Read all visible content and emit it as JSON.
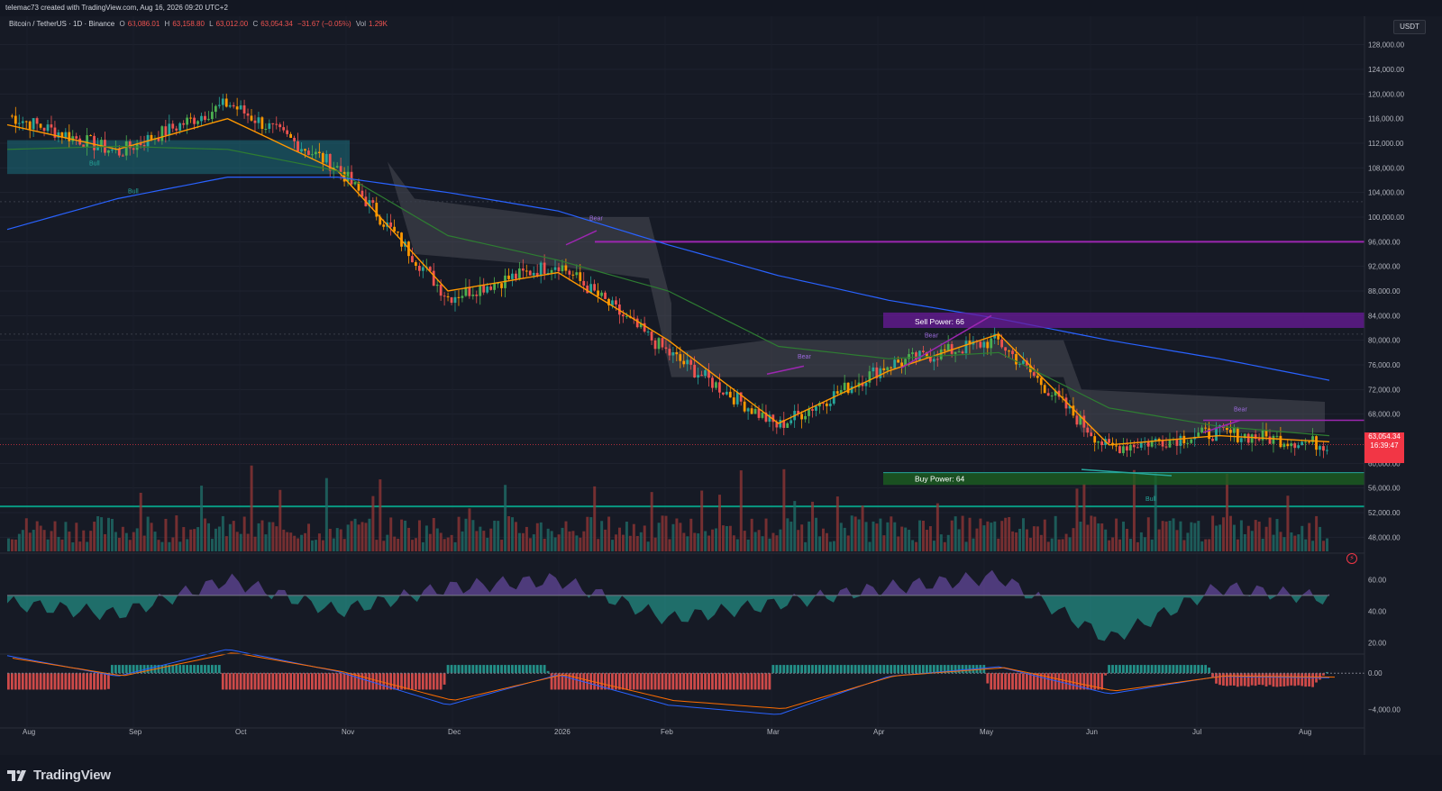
{
  "header": {
    "credit": "telemac73 created with TradingView.com, Aug 16, 2026 09:20 UTC+2",
    "symbol": "Bitcoin / TetherUS · 1D · Binance",
    "ohlc": {
      "o_label": "O",
      "o": "63,086.01",
      "h_label": "H",
      "h": "63,158.80",
      "l_label": "L",
      "l": "63,012.00",
      "c_label": "C",
      "c": "63,054.34",
      "change": "−31.67 (−0.05%)",
      "vol_label": "Vol",
      "vol": "1.29K"
    },
    "currency_button": "USDT"
  },
  "price_scale": {
    "labels": [
      "128,000.00",
      "124,000.00",
      "120,000.00",
      "116,000.00",
      "112,000.00",
      "108,000.00",
      "104,000.00",
      "100,000.00",
      "96,000.00",
      "92,000.00",
      "88,000.00",
      "84,000.00",
      "80,000.00",
      "76,000.00",
      "72,000.00",
      "68,000.00",
      "64,000.00",
      "60,000.00",
      "56,000.00",
      "52,000.00",
      "48,000.00"
    ],
    "last_price": "63,054.34",
    "countdown": "16:39:47"
  },
  "rsi_scale": {
    "labels": [
      "60.00",
      "40.00",
      "20.00"
    ]
  },
  "macd_scale": {
    "labels": [
      "0.00",
      "−4,000.00"
    ]
  },
  "time_axis": [
    "Aug",
    "Sep",
    "Oct",
    "Nov",
    "Dec",
    "2026",
    "Feb",
    "Mar",
    "Apr",
    "May",
    "Jun",
    "Jul",
    "Aug"
  ],
  "annotations": {
    "sell_power": "Sell Power: 66",
    "buy_power": "Buy Power: 64",
    "bull": "Bull",
    "bear": "Bear"
  },
  "colors": {
    "up": "#26a69a",
    "down": "#ef5350",
    "ema_fast": "#ff9800",
    "sma_green": "#2e7d32",
    "sma_blue": "#2962ff",
    "purple": "#9c27b0",
    "cloud": "#4a4c55",
    "teal_cloud": "#1b6f7d",
    "bg": "#161a25",
    "price_tag": "#f23645"
  },
  "icons": {
    "logo": "tradingview-logo-icon",
    "alert": "lightning-icon"
  },
  "footer": {
    "brand": "TradingView"
  },
  "chart_data": {
    "type": "candlestick",
    "title": "Bitcoin / TetherUS · 1D · Binance",
    "x": [
      "Aug",
      "Sep",
      "Oct",
      "Nov",
      "Dec",
      "2026",
      "Feb",
      "Mar",
      "Apr",
      "May",
      "Jun",
      "Jul",
      "Aug"
    ],
    "close": [
      116500,
      110500,
      118500,
      108000,
      87000,
      92500,
      78000,
      66000,
      76000,
      80000,
      62500,
      65000,
      63054
    ],
    "ylim": [
      46000,
      130000
    ],
    "series": [
      {
        "name": "EMA",
        "values": [
          115000,
          111000,
          116000,
          107500,
          88000,
          91000,
          80000,
          66500,
          75000,
          81000,
          63000,
          64500,
          63500
        ]
      },
      {
        "name": "SMA",
        "values": [
          111000,
          111500,
          111000,
          107500,
          97000,
          93000,
          88000,
          79000,
          77000,
          78000,
          69000,
          66000,
          64500
        ]
      },
      {
        "name": "SMA long",
        "values": [
          98000,
          103000,
          106500,
          106500,
          104000,
          101000,
          95500,
          90500,
          86500,
          83500,
          80000,
          77000,
          73500
        ]
      }
    ],
    "levels": [
      96000,
      84000,
      57000,
      53000
    ],
    "rsi": {
      "ylim": [
        15,
        70
      ],
      "values": [
        45,
        38,
        60,
        40,
        55,
        60,
        35,
        45,
        55,
        62,
        22,
        55,
        48
      ]
    },
    "macd": {
      "ylim": [
        -6000,
        1500
      ]
    }
  }
}
